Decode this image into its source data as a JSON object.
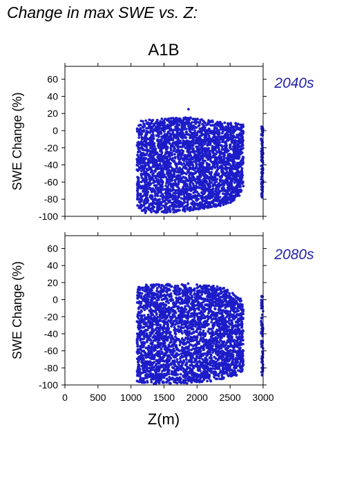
{
  "figure_title": "Change in max SWE vs. Z:",
  "chart_data": {
    "type": "scatter",
    "scenario": "A1B",
    "xlabel": "Z(m)",
    "ylabel": "SWE Change (%)",
    "xlim": [
      0,
      3000
    ],
    "ylim": [
      -100,
      75
    ],
    "xticks": [
      0,
      500,
      1000,
      1500,
      2000,
      2500,
      3000
    ],
    "yticks": [
      -100,
      -80,
      -60,
      -40,
      -20,
      0,
      20,
      40,
      60
    ],
    "point_color": "#1c1cc8",
    "label_color": "#2222aa",
    "grid": false,
    "panels": [
      {
        "period": "2040s",
        "envelope": {
          "z": [
            1090,
            1150,
            1300,
            1500,
            1700,
            1850,
            2000,
            2200,
            2400,
            2550,
            2650,
            2700
          ],
          "upper": [
            6,
            12,
            13,
            14,
            15,
            16,
            14,
            12,
            10,
            9,
            8,
            7
          ],
          "lower": [
            -88,
            -95,
            -97,
            -96,
            -95,
            -94,
            -92,
            -90,
            -87,
            -83,
            -75,
            -65
          ]
        },
        "outliers": [
          {
            "z": 1870,
            "y": 25
          }
        ],
        "isolated_cluster": {
          "z": [
            2970,
            3000
          ],
          "y": [
            -78,
            6
          ]
        }
      },
      {
        "period": "2080s",
        "envelope": {
          "z": [
            1090,
            1150,
            1300,
            1500,
            1700,
            1850,
            2000,
            2200,
            2400,
            2550,
            2650,
            2700
          ],
          "upper": [
            14,
            17,
            18,
            18,
            19,
            19,
            18,
            17,
            14,
            8,
            2,
            -5
          ],
          "lower": [
            -96,
            -99,
            -99,
            -99,
            -99,
            -98,
            -97,
            -96,
            -93,
            -90,
            -88,
            -85
          ]
        },
        "outliers": [],
        "isolated_cluster": {
          "z": [
            2970,
            3000
          ],
          "y": [
            -90,
            5
          ]
        }
      }
    ]
  }
}
